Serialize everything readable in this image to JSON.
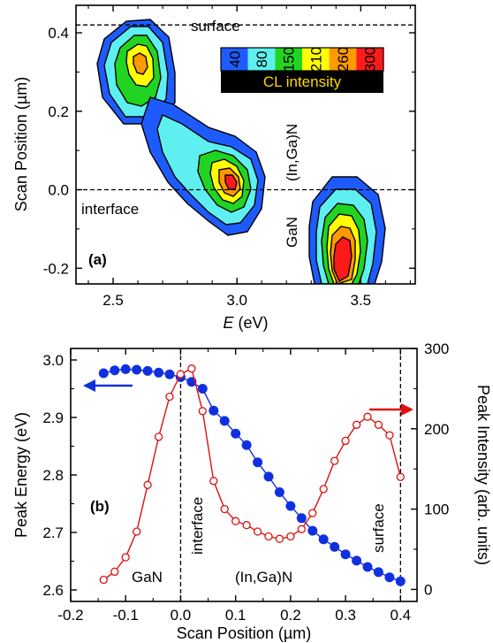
{
  "chart_data": [
    {
      "panel": "(a)",
      "type": "heatmap",
      "xlabel_italic": "E",
      "xlabel_unit": "(eV)",
      "ylabel": "Scan Position (µm)",
      "xlim": [
        2.35,
        3.72
      ],
      "ylim": [
        -0.24,
        0.47
      ],
      "xticks": [
        "2.5",
        "3.0",
        "3.5"
      ],
      "xtick_values": [
        2.5,
        3.0,
        3.5
      ],
      "yticks": [
        "-0.2",
        "0.0",
        "0.2",
        "0.4"
      ],
      "ytick_values": [
        -0.2,
        0.0,
        0.2,
        0.4
      ],
      "hlines": [
        {
          "y": 0.42,
          "label": "surface"
        },
        {
          "y": 0.0,
          "label": "interface"
        }
      ],
      "region_labels": [
        "(In,Ga)N",
        "GaN"
      ],
      "colorbar": {
        "title": "CL intensity",
        "levels": [
          "40",
          "80",
          "150",
          "210",
          "260",
          "300"
        ],
        "colors": [
          "#1e5bff",
          "#5ef0f0",
          "#22d422",
          "#ffff00",
          "#ff9900",
          "#ff1a1a"
        ]
      },
      "contour_levels": [
        40,
        80,
        150,
        210,
        260,
        300
      ]
    },
    {
      "panel": "(b)",
      "type": "line",
      "xlabel": "Scan Position (µm)",
      "ylabel_left": "Peak Energy (eV)",
      "ylabel_right": "Peak Intensity (arb. units)",
      "xlim": [
        -0.2,
        0.43
      ],
      "ylim_left": [
        2.58,
        3.02
      ],
      "ylim_right": [
        -15,
        300
      ],
      "xticks": [
        "-0.2",
        "-0.1",
        "0.0",
        "0.1",
        "0.2",
        "0.3",
        "0.4"
      ],
      "xtick_values": [
        -0.2,
        -0.1,
        0.0,
        0.1,
        0.2,
        0.3,
        0.4
      ],
      "yticks_left": [
        "2.6",
        "2.7",
        "2.8",
        "2.9",
        "3.0"
      ],
      "ytick_values_left": [
        2.6,
        2.7,
        2.8,
        2.9,
        3.0
      ],
      "yticks_right": [
        "0",
        "100",
        "200",
        "300"
      ],
      "ytick_values_right": [
        0,
        100,
        200,
        300
      ],
      "vlines": [
        0.0,
        0.4
      ],
      "annotations": [
        "interface",
        "surface",
        "GaN",
        "(In,Ga)N"
      ],
      "series": [
        {
          "axis": "left",
          "color": "#1030e0",
          "marker": "filled-circle",
          "x": [
            -0.14,
            -0.12,
            -0.1,
            -0.08,
            -0.06,
            -0.04,
            -0.02,
            0.0,
            0.02,
            0.04,
            0.06,
            0.08,
            0.1,
            0.12,
            0.14,
            0.16,
            0.18,
            0.2,
            0.22,
            0.24,
            0.26,
            0.28,
            0.3,
            0.32,
            0.34,
            0.36,
            0.38,
            0.4
          ],
          "y": [
            2.977,
            2.982,
            2.984,
            2.983,
            2.981,
            2.978,
            2.975,
            2.97,
            2.962,
            2.95,
            2.912,
            2.894,
            2.872,
            2.852,
            2.822,
            2.797,
            2.77,
            2.746,
            2.725,
            2.703,
            2.688,
            2.675,
            2.662,
            2.651,
            2.64,
            2.631,
            2.622,
            2.615
          ]
        },
        {
          "axis": "right",
          "color": "#e01010",
          "marker": "open-circle",
          "x": [
            -0.14,
            -0.12,
            -0.1,
            -0.08,
            -0.06,
            -0.04,
            -0.02,
            0.0,
            0.02,
            0.04,
            0.06,
            0.08,
            0.1,
            0.12,
            0.14,
            0.16,
            0.18,
            0.2,
            0.22,
            0.24,
            0.26,
            0.28,
            0.3,
            0.32,
            0.34,
            0.36,
            0.38,
            0.4
          ],
          "y": [
            12,
            22,
            40,
            72,
            130,
            190,
            240,
            268,
            275,
            222,
            135,
            100,
            85,
            80,
            72,
            66,
            63,
            66,
            75,
            95,
            125,
            160,
            185,
            205,
            215,
            205,
            192,
            140
          ]
        }
      ]
    }
  ]
}
